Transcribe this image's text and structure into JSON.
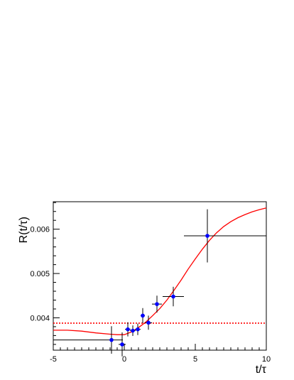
{
  "chart_data": {
    "type": "scatter",
    "title": "",
    "xlabel": "t/τ",
    "ylabel": "R(t/τ)",
    "xlim": [
      -5,
      10
    ],
    "ylim": [
      0.00327,
      0.00662
    ],
    "x_ticks": [
      -5,
      0,
      5,
      10
    ],
    "x_tick_labels": [
      "-5",
      "0",
      "5",
      "10"
    ],
    "y_ticks": [
      0.004,
      0.005,
      0.006
    ],
    "y_tick_labels": [
      "0.004",
      "0.005",
      "0.006"
    ],
    "grid": false,
    "series": [
      {
        "kind": "points-with-errors",
        "color": "#0000ff",
        "points": [
          {
            "x": -0.9,
            "y": 0.0035,
            "xerr_low": 4.1,
            "xerr_high": 0.8,
            "yerr": 0.00031
          },
          {
            "x": -0.15,
            "y": 0.0034,
            "xerr_low": 0.25,
            "xerr_high": 0.25,
            "yerr": 0.00027
          },
          {
            "x": 0.25,
            "y": 0.00374,
            "xerr_low": 0.2,
            "xerr_high": 0.2,
            "yerr": 0.00016
          },
          {
            "x": 0.6,
            "y": 0.00371,
            "xerr_low": 0.2,
            "xerr_high": 0.2,
            "yerr": 0.00012
          },
          {
            "x": 0.95,
            "y": 0.00374,
            "xerr_low": 0.2,
            "xerr_high": 0.2,
            "yerr": 0.00013
          },
          {
            "x": 1.3,
            "y": 0.00405,
            "xerr_low": 0.15,
            "xerr_high": 0.15,
            "yerr": 0.00017
          },
          {
            "x": 1.7,
            "y": 0.00389,
            "xerr_low": 0.25,
            "xerr_high": 0.25,
            "yerr": 0.00016
          },
          {
            "x": 2.3,
            "y": 0.00431,
            "xerr_low": 0.35,
            "xerr_high": 0.35,
            "yerr": 0.00019
          },
          {
            "x": 3.45,
            "y": 0.00448,
            "xerr_low": 0.75,
            "xerr_high": 0.75,
            "yerr": 0.00022
          },
          {
            "x": 5.85,
            "y": 0.00585,
            "xerr_low": 1.65,
            "xerr_high": 4.15,
            "yerr": 0.0006
          }
        ]
      },
      {
        "kind": "curve",
        "color": "#ff0000",
        "x": [
          -5,
          -4,
          -3,
          -2,
          -1,
          -0.5,
          0,
          0.5,
          1,
          1.5,
          2,
          2.5,
          3,
          3.5,
          4,
          4.5,
          5,
          5.5,
          6,
          6.5,
          7,
          7.5,
          8,
          8.5,
          9,
          9.5,
          10
        ],
        "y": [
          0.00372,
          0.00372,
          0.0037,
          0.00366,
          0.00363,
          0.00362,
          0.00362,
          0.00368,
          0.00378,
          0.0039,
          0.00405,
          0.00421,
          0.0044,
          0.00462,
          0.00485,
          0.0051,
          0.00533,
          0.00555,
          0.00575,
          0.00592,
          0.00606,
          0.00617,
          0.00626,
          0.00633,
          0.00639,
          0.00644,
          0.00648
        ]
      },
      {
        "kind": "hline",
        "color": "#ff0000",
        "style": "dotted",
        "y": 0.00388
      }
    ]
  }
}
